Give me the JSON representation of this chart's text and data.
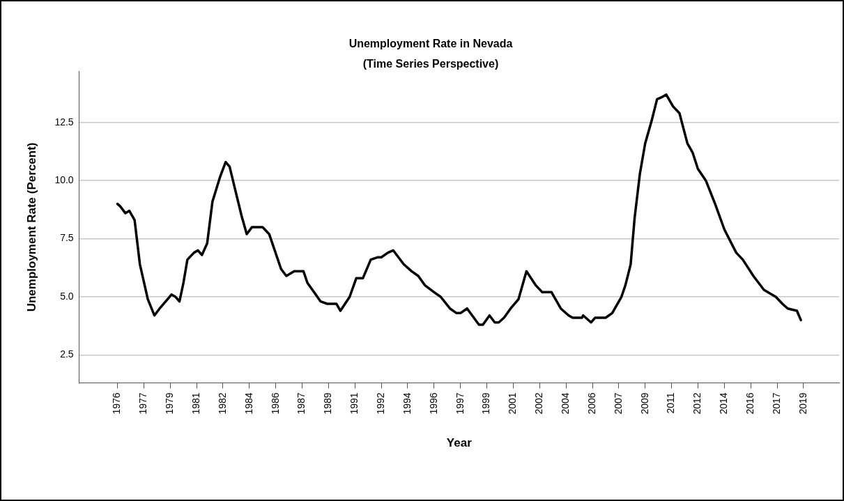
{
  "chart_data": {
    "type": "line",
    "title": "Unemployment Rate in Nevada",
    "subtitle": "(Time Series Perspective)",
    "xlabel": "Year",
    "ylabel": "Unemployment Rate (Percent)",
    "x": [
      "1976-01",
      "1976-03",
      "1976-07",
      "1976-10",
      "1977-02",
      "1977-06",
      "1977-12",
      "1978-05",
      "1978-09",
      "1979-03",
      "1979-06",
      "1979-09",
      "1979-12",
      "1980-03",
      "1980-06",
      "1980-11",
      "1981-02",
      "1981-05",
      "1981-09",
      "1982-01",
      "1982-07",
      "1982-11",
      "1983-02",
      "1983-05",
      "1983-11",
      "1984-03",
      "1984-07",
      "1985-03",
      "1985-08",
      "1985-11",
      "1986-05",
      "1986-09",
      "1987-03",
      "1987-10",
      "1988-01",
      "1988-06",
      "1988-11",
      "1989-04",
      "1989-11",
      "1990-02",
      "1990-09",
      "1991-02",
      "1991-07",
      "1992-01",
      "1992-06",
      "1992-09",
      "1993-02",
      "1993-06",
      "1994-02",
      "1994-08",
      "1995-01",
      "1995-06",
      "1996-01",
      "1996-06",
      "1997-01",
      "1997-06",
      "1997-09",
      "1998-02",
      "1998-11",
      "1999-02",
      "1999-07",
      "1999-11",
      "2000-02",
      "2000-06",
      "2000-11",
      "2001-05",
      "2001-11",
      "2002-06",
      "2002-11",
      "2003-06",
      "2004-01",
      "2004-07",
      "2004-10",
      "2005-05",
      "2005-06",
      "2005-12",
      "2006-03",
      "2006-11",
      "2007-04",
      "2007-11",
      "2008-02",
      "2008-06",
      "2008-09",
      "2009-01",
      "2009-05",
      "2009-10",
      "2010-02",
      "2010-06",
      "2010-09",
      "2011-02",
      "2011-07",
      "2012-01",
      "2012-05",
      "2012-09",
      "2013-03",
      "2013-10",
      "2014-05",
      "2015-02",
      "2015-07",
      "2016-03",
      "2016-11",
      "2017-08",
      "2018-01",
      "2018-05",
      "2018-12",
      "2019-03"
    ],
    "series": [
      {
        "color": "#000000",
        "values": [
          9.0,
          8.9,
          8.6,
          8.7,
          8.3,
          6.4,
          4.9,
          4.2,
          4.5,
          4.9,
          5.1,
          5.0,
          4.8,
          5.6,
          6.6,
          6.9,
          7.0,
          6.8,
          7.3,
          9.1,
          10.2,
          10.8,
          10.6,
          9.9,
          8.5,
          7.7,
          8.0,
          8.0,
          7.7,
          7.2,
          6.2,
          5.9,
          6.1,
          6.1,
          5.6,
          5.2,
          4.8,
          4.7,
          4.7,
          4.4,
          5.0,
          5.8,
          5.8,
          6.6,
          6.7,
          6.7,
          6.9,
          7.0,
          6.4,
          6.1,
          5.9,
          5.5,
          5.2,
          5.0,
          4.5,
          4.3,
          4.3,
          4.5,
          3.8,
          3.8,
          4.2,
          3.9,
          3.9,
          4.1,
          4.5,
          4.9,
          6.1,
          5.5,
          5.2,
          5.2,
          4.5,
          4.2,
          4.1,
          4.1,
          4.2,
          3.9,
          4.1,
          4.1,
          4.3,
          5.0,
          5.5,
          6.4,
          8.4,
          10.3,
          11.6,
          12.6,
          13.5,
          13.6,
          13.7,
          13.2,
          12.9,
          11.6,
          11.2,
          10.5,
          10.0,
          9.0,
          7.9,
          6.9,
          6.6,
          5.9,
          5.3,
          5.0,
          4.7,
          4.5,
          4.4,
          4.0
        ]
      }
    ],
    "xlim": [
      "1973-08",
      "2021-08"
    ],
    "xticks": [
      {
        "value": "1976-01",
        "label": "1976"
      },
      {
        "value": "1977-09",
        "label": "1977"
      },
      {
        "value": "1979-05",
        "label": "1979"
      },
      {
        "value": "1981-01",
        "label": "1981"
      },
      {
        "value": "1982-09",
        "label": "1982"
      },
      {
        "value": "1984-05",
        "label": "1984"
      },
      {
        "value": "1986-01",
        "label": "1986"
      },
      {
        "value": "1987-09",
        "label": "1987"
      },
      {
        "value": "1989-05",
        "label": "1989"
      },
      {
        "value": "1991-01",
        "label": "1991"
      },
      {
        "value": "1992-09",
        "label": "1992"
      },
      {
        "value": "1994-05",
        "label": "1994"
      },
      {
        "value": "1996-01",
        "label": "1996"
      },
      {
        "value": "1997-09",
        "label": "1997"
      },
      {
        "value": "1999-05",
        "label": "1999"
      },
      {
        "value": "2001-01",
        "label": "2001"
      },
      {
        "value": "2002-09",
        "label": "2002"
      },
      {
        "value": "2004-05",
        "label": "2004"
      },
      {
        "value": "2006-01",
        "label": "2006"
      },
      {
        "value": "2007-09",
        "label": "2007"
      },
      {
        "value": "2009-05",
        "label": "2009"
      },
      {
        "value": "2011-01",
        "label": "2011"
      },
      {
        "value": "2012-09",
        "label": "2012"
      },
      {
        "value": "2014-05",
        "label": "2014"
      },
      {
        "value": "2016-01",
        "label": "2016"
      },
      {
        "value": "2017-09",
        "label": "2017"
      },
      {
        "value": "2019-05",
        "label": "2019"
      }
    ],
    "ylim": [
      1.3,
      14.7
    ],
    "yticks": [
      2.5,
      {
        "value": 5,
        "label": "5.0"
      },
      {
        "value": 7.5,
        "label": "7.5"
      },
      {
        "value": 10,
        "label": "10.0"
      },
      12.5
    ],
    "grid": "y",
    "legend": false,
    "marker": "none",
    "line_style": "solid"
  }
}
